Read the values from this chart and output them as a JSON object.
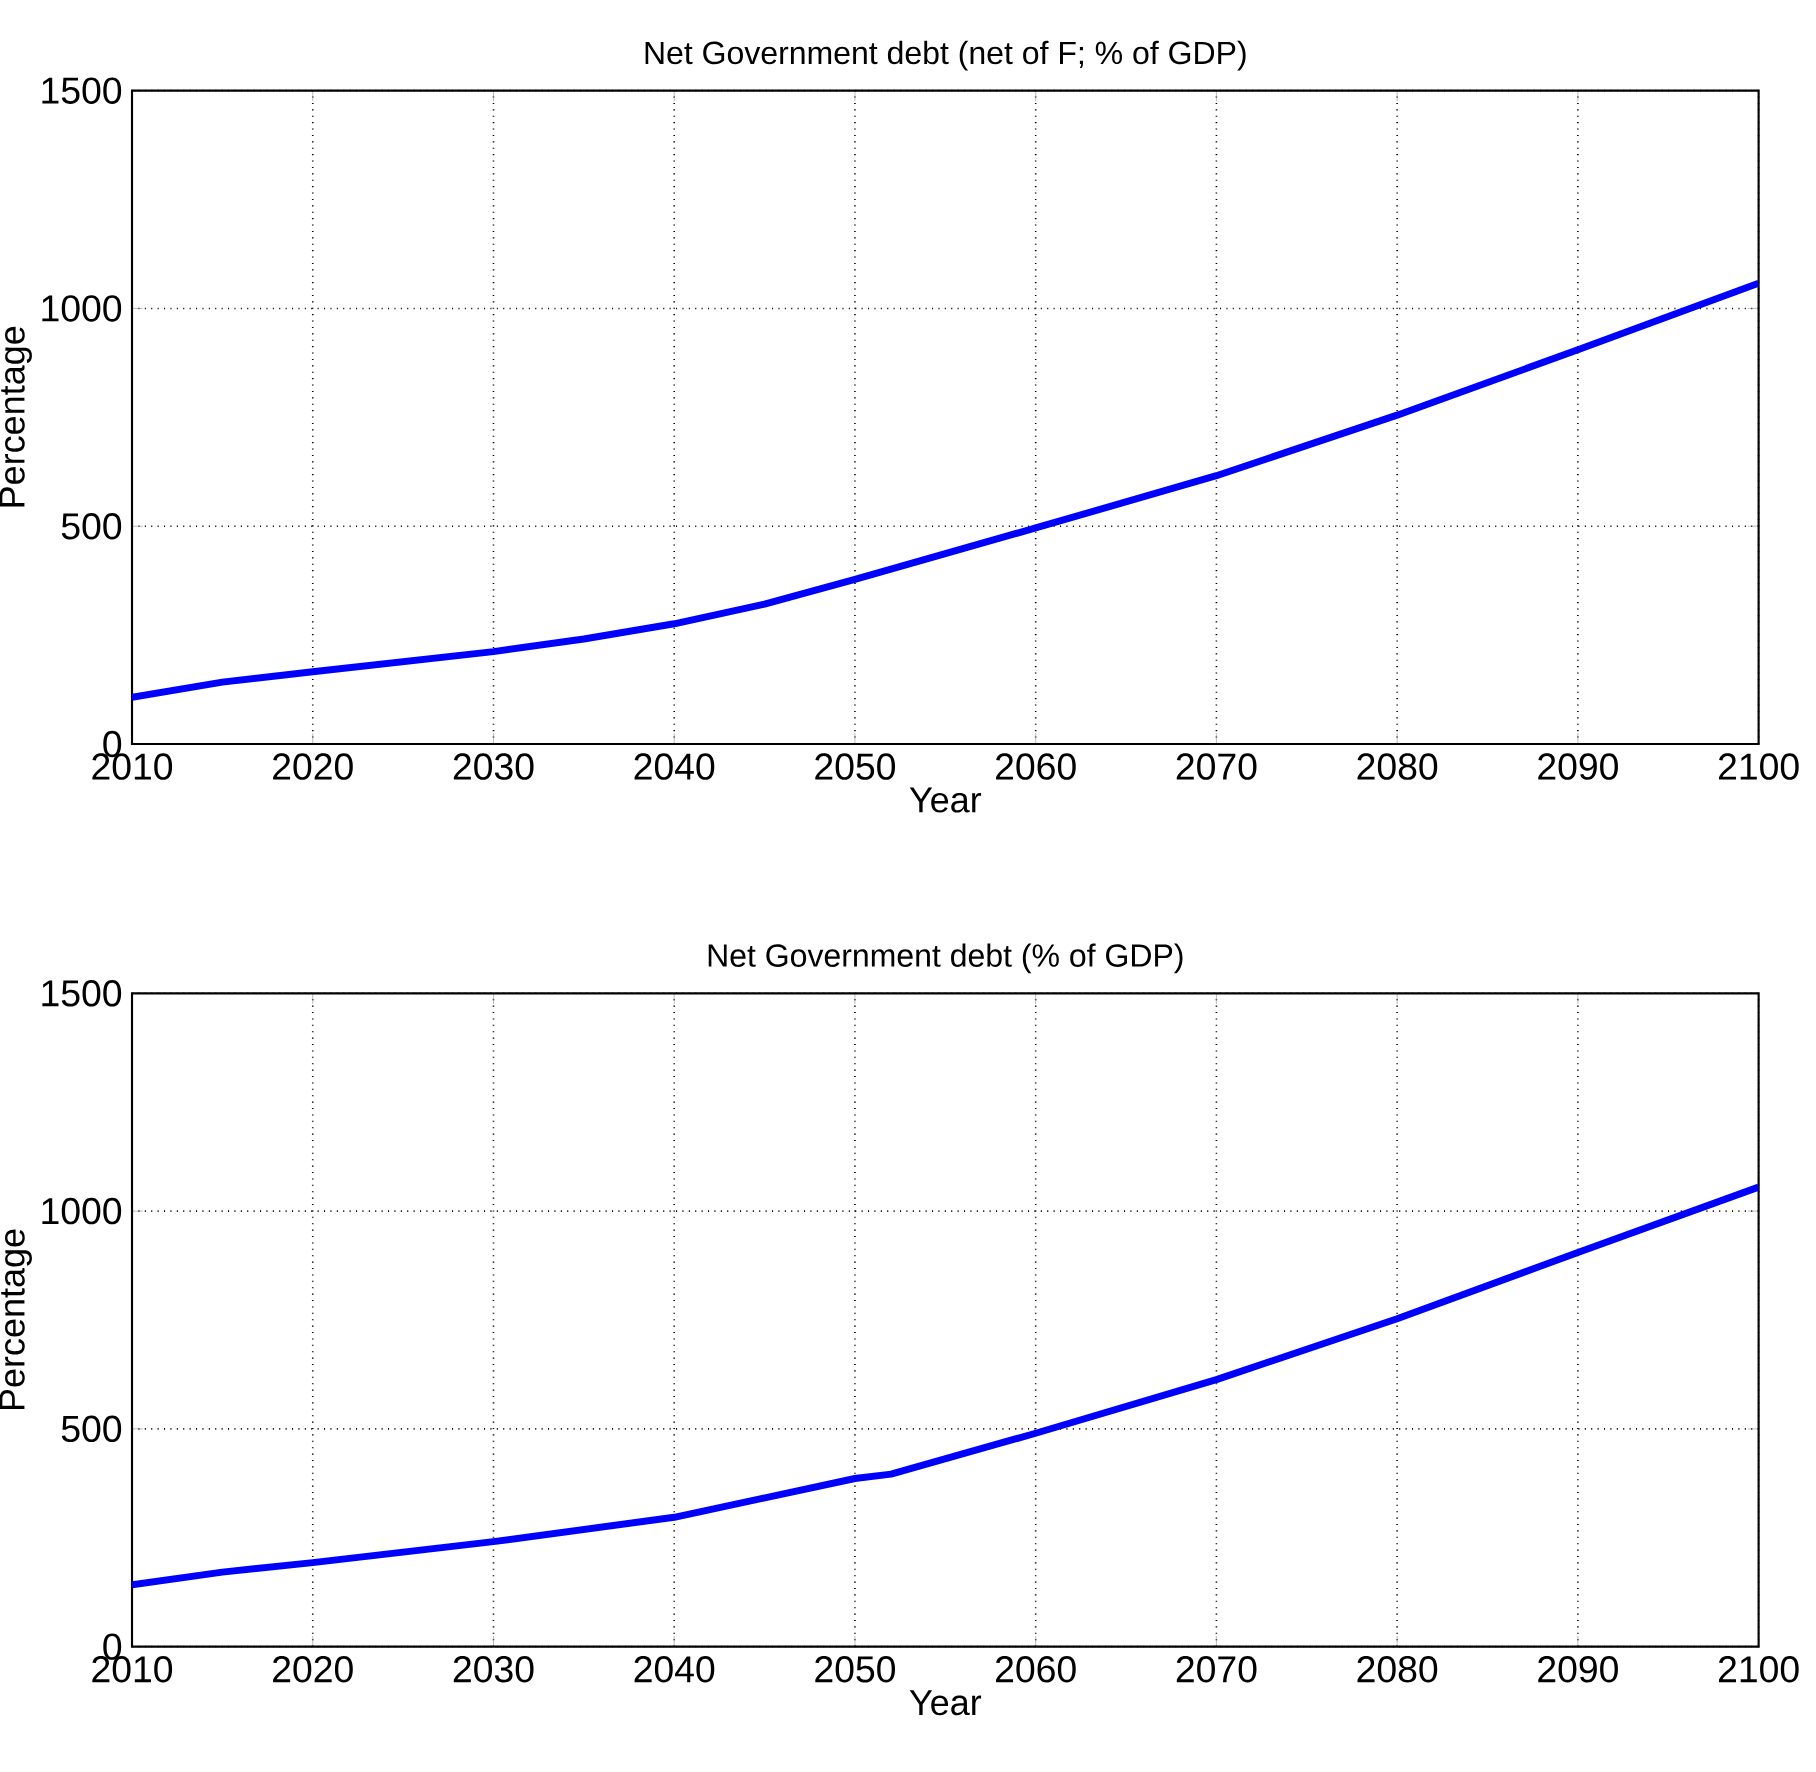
{
  "chart_data": [
    {
      "type": "line",
      "title": "Net Government debt (net of F; % of GDP)",
      "xlabel": "Year",
      "ylabel": "Percentage",
      "x": [
        2010,
        2015,
        2020,
        2030,
        2035,
        2040,
        2045,
        2050,
        2055,
        2060,
        2070,
        2080,
        2090,
        2100
      ],
      "series": [
        {
          "color": "#0000ff",
          "values": [
            107,
            142,
            166,
            212,
            241,
            276,
            321,
            378,
            437,
            496,
            616,
            755,
            905,
            1058
          ]
        }
      ],
      "xlim": [
        2010,
        2100
      ],
      "ylim": [
        0,
        1500
      ],
      "xticks": [
        2010,
        2020,
        2030,
        2040,
        2050,
        2060,
        2070,
        2080,
        2090,
        2100
      ],
      "yticks": [
        0,
        500,
        1000,
        1500
      ],
      "grid": true
    },
    {
      "type": "line",
      "title": "Net Government debt (% of GDP)",
      "xlabel": "Year",
      "ylabel": "Percentage",
      "x": [
        2010,
        2015,
        2020,
        2030,
        2040,
        2050,
        2052,
        2060,
        2070,
        2080,
        2090,
        2100
      ],
      "series": [
        {
          "color": "#0000ff",
          "values": [
            142,
            171,
            193,
            241,
            297,
            386,
            396,
            490,
            613,
            753,
            905,
            1055
          ]
        }
      ],
      "xlim": [
        2010,
        2100
      ],
      "ylim": [
        0,
        1500
      ],
      "xticks": [
        2010,
        2020,
        2030,
        2040,
        2050,
        2060,
        2070,
        2080,
        2090,
        2100
      ],
      "yticks": [
        0,
        500,
        1000,
        1500
      ],
      "grid": true
    }
  ]
}
